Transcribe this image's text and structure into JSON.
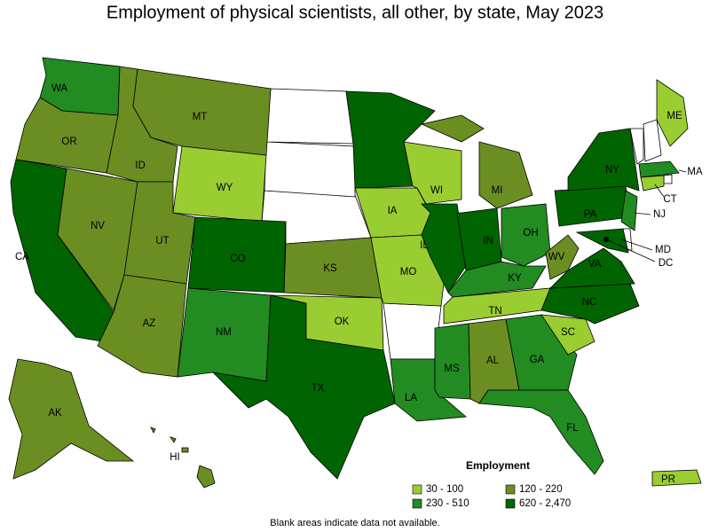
{
  "title": "Employment of physical scientists, all other, by state, May 2023",
  "states": [
    {
      "abbr": "WA",
      "color": "#228b22"
    },
    {
      "abbr": "OR",
      "color": "#6b8e23"
    },
    {
      "abbr": "CA",
      "color": "#006400"
    },
    {
      "abbr": "NV",
      "color": "#6b8e23"
    },
    {
      "abbr": "ID",
      "color": "#6b8e23"
    },
    {
      "abbr": "MT",
      "color": "#6b8e23"
    },
    {
      "abbr": "WY",
      "color": "#9acd32"
    },
    {
      "abbr": "UT",
      "color": "#6b8e23"
    },
    {
      "abbr": "AZ",
      "color": "#6b8e23"
    },
    {
      "abbr": "CO",
      "color": "#006400"
    },
    {
      "abbr": "NM",
      "color": "#228b22"
    },
    {
      "abbr": "TX",
      "color": "#006400"
    },
    {
      "abbr": "OK",
      "color": "#9acd32"
    },
    {
      "abbr": "KS",
      "color": "#6b8e23"
    },
    {
      "abbr": "MN",
      "color": "#006400"
    },
    {
      "abbr": "IA",
      "color": "#9acd32"
    },
    {
      "abbr": "MO",
      "color": "#9acd32"
    },
    {
      "abbr": "LA",
      "color": "#228b22"
    },
    {
      "abbr": "WI",
      "color": "#9acd32"
    },
    {
      "abbr": "IL",
      "color": "#006400"
    },
    {
      "abbr": "IN",
      "color": "#006400"
    },
    {
      "abbr": "MI",
      "color": "#6b8e23"
    },
    {
      "abbr": "OH",
      "color": "#228b22"
    },
    {
      "abbr": "KY",
      "color": "#228b22"
    },
    {
      "abbr": "TN",
      "color": "#9acd32"
    },
    {
      "abbr": "MS",
      "color": "#228b22"
    },
    {
      "abbr": "AL",
      "color": "#6b8e23"
    },
    {
      "abbr": "GA",
      "color": "#228b22"
    },
    {
      "abbr": "FL",
      "color": "#228b22"
    },
    {
      "abbr": "SC",
      "color": "#9acd32"
    },
    {
      "abbr": "NC",
      "color": "#006400"
    },
    {
      "abbr": "VA",
      "color": "#006400"
    },
    {
      "abbr": "WV",
      "color": "#6b8e23"
    },
    {
      "abbr": "PA",
      "color": "#006400"
    },
    {
      "abbr": "NY",
      "color": "#006400"
    },
    {
      "abbr": "ME",
      "color": "#9acd32"
    },
    {
      "abbr": "MA",
      "color": "#228b22"
    },
    {
      "abbr": "CT",
      "color": "#9acd32"
    },
    {
      "abbr": "NJ",
      "color": "#228b22"
    },
    {
      "abbr": "MD",
      "color": "#006400"
    },
    {
      "abbr": "DC",
      "color": "#006400"
    },
    {
      "abbr": "AK",
      "color": "#6b8e23"
    },
    {
      "abbr": "HI",
      "color": "#6b8e23"
    },
    {
      "abbr": "PR",
      "color": "#9acd32"
    }
  ],
  "legend": {
    "title": "Employment",
    "bins": [
      {
        "label": "30 - 100",
        "color": "#9acd32"
      },
      {
        "label": "120 - 220",
        "color": "#6b8e23"
      },
      {
        "label": "230 - 510",
        "color": "#228b22"
      },
      {
        "label": "620 - 2,470",
        "color": "#006400"
      }
    ]
  },
  "footnote": "Blank areas indicate data not available."
}
